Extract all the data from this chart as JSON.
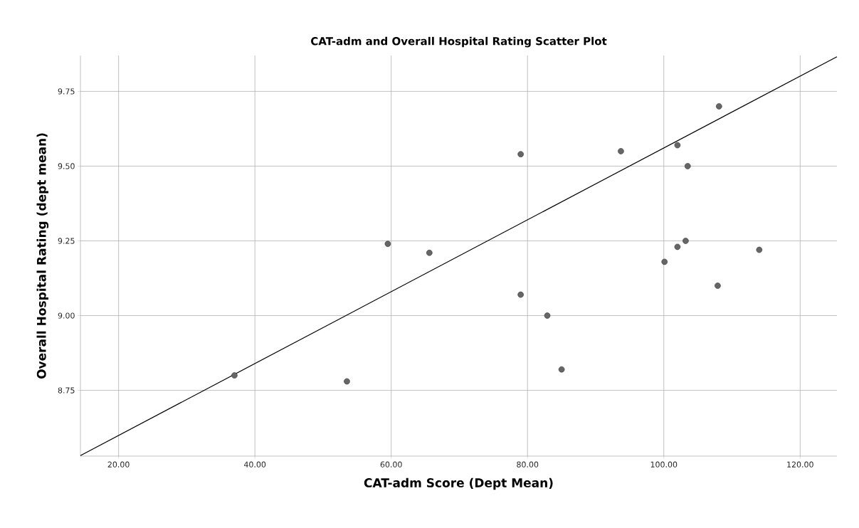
{
  "chart_data": {
    "type": "scatter",
    "title": "CAT-adm and Overall Hospital Rating Scatter Plot",
    "xlabel": "CAT-adm Score (Dept Mean)",
    "ylabel": "Overall Hospital Rating (dept mean)",
    "xlim": [
      14.4,
      125.4
    ],
    "ylim": [
      8.53,
      9.87
    ],
    "xticks": [
      {
        "value": 20,
        "label": "20.00"
      },
      {
        "value": 40,
        "label": "40.00"
      },
      {
        "value": 60,
        "label": "60.00"
      },
      {
        "value": 80,
        "label": "80.00"
      },
      {
        "value": 100,
        "label": "100.00"
      },
      {
        "value": 120,
        "label": "120.00"
      }
    ],
    "yticks": [
      {
        "value": 8.75,
        "label": "8.75"
      },
      {
        "value": 9.0,
        "label": "9.00"
      },
      {
        "value": 9.25,
        "label": "9.25"
      },
      {
        "value": 9.5,
        "label": "9.50"
      },
      {
        "value": 9.75,
        "label": "9.75"
      }
    ],
    "grid": true,
    "marker": "circle",
    "series": [
      {
        "color": "#666666",
        "x": [
          37.0,
          53.5,
          59.5,
          65.6,
          79.0,
          93.7,
          108.1,
          102.0,
          103.5,
          103.2,
          102.0,
          100.1,
          114.0,
          107.9,
          79.0,
          82.9,
          85.0
        ],
        "values": [
          8.8,
          8.78,
          9.24,
          9.21,
          9.54,
          9.55,
          9.7,
          9.57,
          9.5,
          9.25,
          9.23,
          9.18,
          9.22,
          9.1,
          9.07,
          9.0,
          8.82
        ]
      },
      {
        "type": "line",
        "color": "#000000",
        "marker": "none",
        "x": [
          14.4,
          125.4
        ],
        "values": [
          8.532,
          9.866
        ]
      }
    ]
  }
}
